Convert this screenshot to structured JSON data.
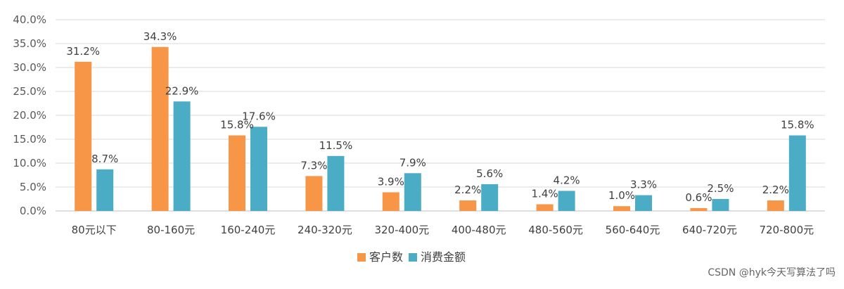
{
  "chart_data": {
    "type": "bar",
    "categories": [
      "80元以下",
      "80-160元",
      "160-240元",
      "240-320元",
      "320-400元",
      "400-480元",
      "480-560元",
      "560-640元",
      "640-720元",
      "720-800元"
    ],
    "series": [
      {
        "name": "客户数",
        "color": "#F79646",
        "values": [
          31.2,
          34.3,
          15.8,
          7.3,
          3.9,
          2.2,
          1.4,
          1.0,
          0.6,
          2.2
        ]
      },
      {
        "name": "消费金额",
        "color": "#4BACC6",
        "values": [
          8.7,
          22.9,
          17.6,
          11.5,
          7.9,
          5.6,
          4.2,
          3.3,
          2.5,
          15.8
        ]
      }
    ],
    "ylim": [
      0,
      40
    ],
    "yticks": [
      "0.0%",
      "5.0%",
      "10.0%",
      "15.0%",
      "20.0%",
      "25.0%",
      "30.0%",
      "35.0%",
      "40.0%"
    ],
    "data_labels": [
      [
        "31.2%",
        "34.3%",
        "15.8%",
        "7.3%",
        "3.9%",
        "2.2%",
        "1.4%",
        "1.0%",
        "0.6%",
        "2.2%"
      ],
      [
        "8.7%",
        "22.9%",
        "17.6%",
        "11.5%",
        "7.9%",
        "5.6%",
        "4.2%",
        "3.3%",
        "2.5%",
        "15.8%"
      ]
    ],
    "grid": true,
    "legend_position": "bottom-center"
  },
  "watermark": "CSDN @hyk今天写算法了吗"
}
